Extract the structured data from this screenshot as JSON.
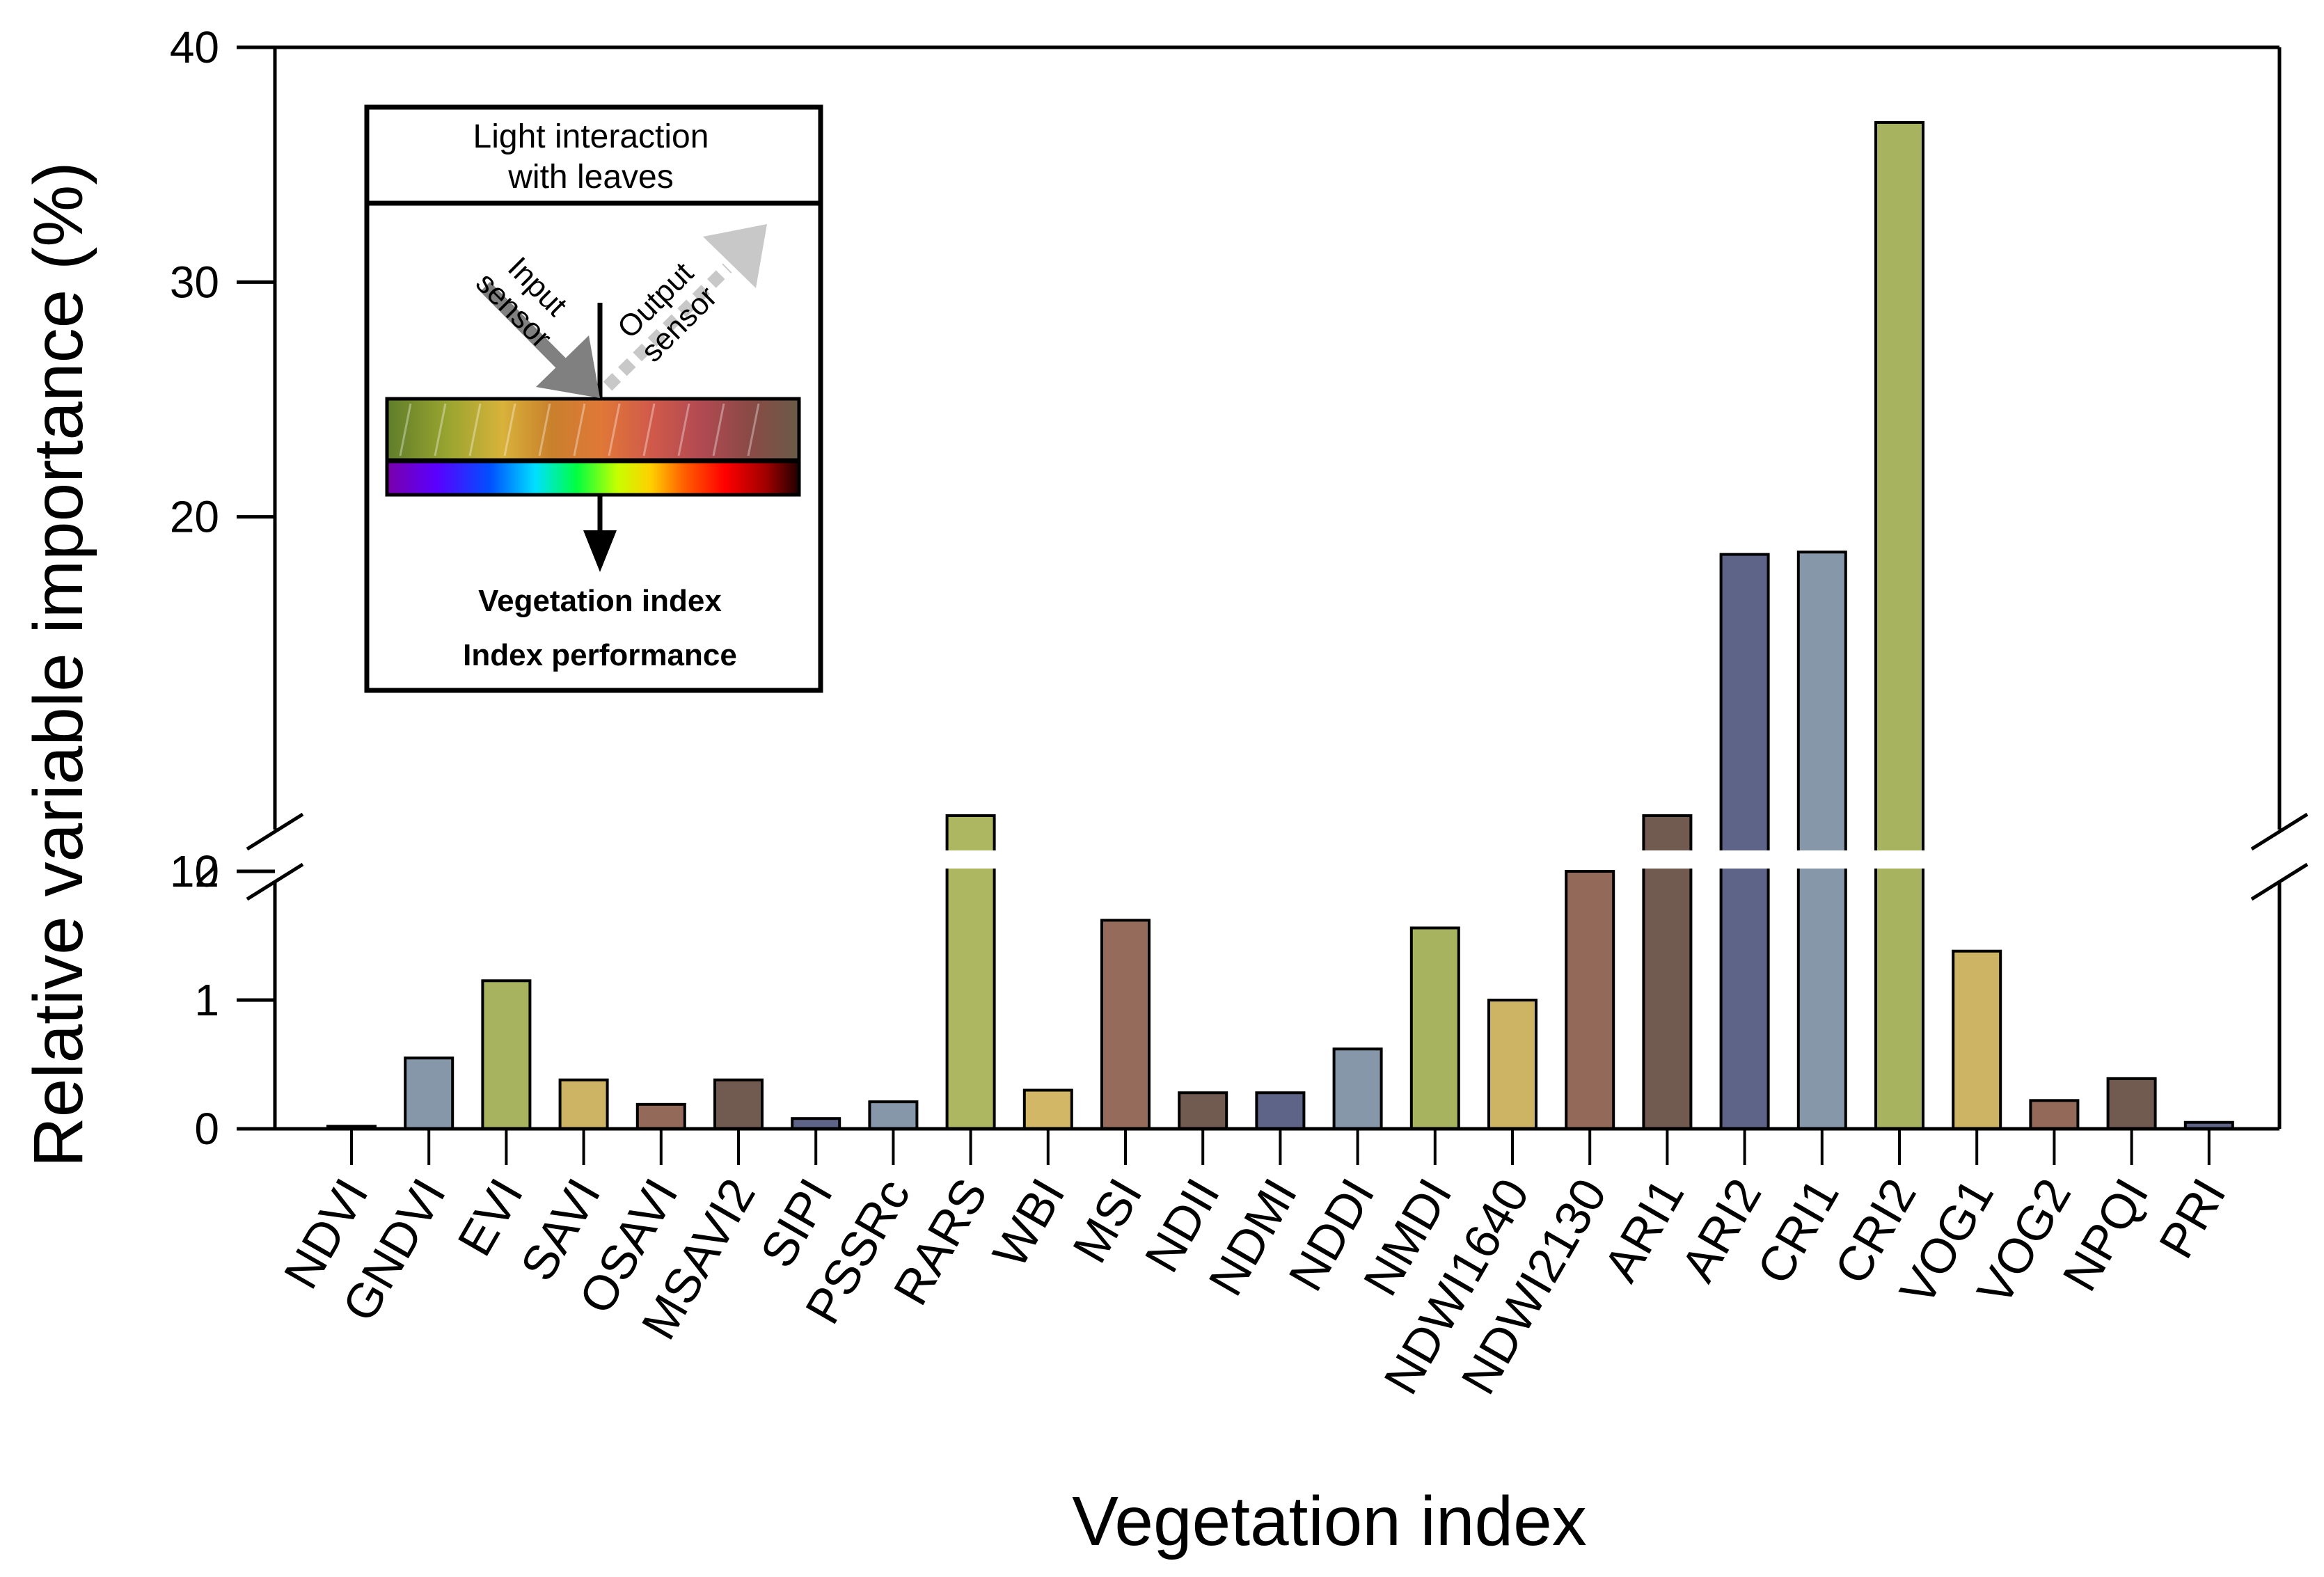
{
  "chart_data": {
    "type": "bar",
    "title": "",
    "xlabel": "Vegetation index",
    "ylabel": "Relative variable importance (%)",
    "y_axis_break": {
      "lower_range": [
        0,
        2
      ],
      "upper_range": [
        10,
        40
      ]
    },
    "ylim": [
      0,
      40
    ],
    "yticks": [
      "0",
      "1",
      "2",
      "10",
      "20",
      "30",
      "40"
    ],
    "grid": false,
    "legend": null,
    "categories": [
      "NDVI",
      "GNDVI",
      "EVI",
      "SAVI",
      "OSAVI",
      "MSAVI2",
      "SIPI",
      "PSSRc",
      "RARS",
      "WBI",
      "MSI",
      "NDII",
      "NDMI",
      "NDDI",
      "NMDI",
      "NDWI1640",
      "NDWI2130",
      "ARI1",
      "ARI2",
      "CRI1",
      "CRI2",
      "VOG1",
      "VOG2",
      "NPQI",
      "PRI"
    ],
    "values": [
      0.02,
      0.55,
      1.15,
      0.38,
      0.19,
      0.38,
      0.08,
      0.21,
      6.5,
      0.3,
      1.62,
      0.28,
      0.28,
      0.62,
      1.56,
      1.0,
      2.0,
      6.6,
      18.4,
      18.5,
      36.8,
      1.38,
      0.22,
      0.39,
      0.05
    ],
    "bar_colors": [
      "#5a5a5a",
      "#8797aa",
      "#a8b35f",
      "#cdb364",
      "#93695a",
      "#715a4f",
      "#5e6488",
      "#8797aa",
      "#adb661",
      "#d1b766",
      "#956b5b",
      "#715a4f",
      "#5e6488",
      "#8797aa",
      "#a8b35f",
      "#cdb364",
      "#93695a",
      "#715a4f",
      "#5e6488",
      "#8797aa",
      "#a8b35f",
      "#cdb364",
      "#93695a",
      "#715a4f",
      "#5e6488"
    ]
  },
  "inset": {
    "title_line1": "Light interaction",
    "title_line2": "with leaves",
    "input_line1": "Input",
    "input_line2": "sensor",
    "output_line1": "Output",
    "output_line2": "sensor",
    "label_vegetation_index": "Vegetation index",
    "label_index_performance": "Index performance"
  }
}
